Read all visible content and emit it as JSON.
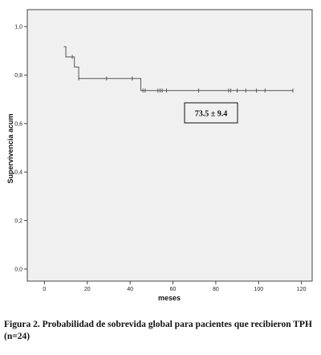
{
  "chart_data": {
    "type": "line",
    "subtype": "kaplan-meier survival curve",
    "xlabel": "meses",
    "ylabel": "Supervivencia acum",
    "xlim": [
      -8,
      125
    ],
    "ylim": [
      -0.05,
      1.07
    ],
    "x_ticks": [
      0,
      20,
      40,
      60,
      80,
      100,
      120
    ],
    "y_ticks": [
      0.0,
      0.2,
      0.4,
      0.6,
      0.8,
      1.0
    ],
    "y_tick_labels": [
      "0,0",
      "0,2",
      "0,4",
      "0,6",
      "0,8",
      "1,0"
    ],
    "grid": false,
    "series": [
      {
        "step_points": [
          {
            "x": 9,
            "y": 0.917
          },
          {
            "x": 10,
            "y": 0.875
          },
          {
            "x": 14,
            "y": 0.833
          },
          {
            "x": 16,
            "y": 0.786
          },
          {
            "x": 45,
            "y": 0.736
          },
          {
            "x": 116,
            "y": 0.736
          }
        ],
        "censored": [
          {
            "x": 13,
            "y": 0.875
          },
          {
            "x": 16,
            "y": 0.786
          },
          {
            "x": 29,
            "y": 0.786
          },
          {
            "x": 41,
            "y": 0.786
          },
          {
            "x": 46,
            "y": 0.736
          },
          {
            "x": 47,
            "y": 0.736
          },
          {
            "x": 53,
            "y": 0.736
          },
          {
            "x": 54,
            "y": 0.736
          },
          {
            "x": 55,
            "y": 0.736
          },
          {
            "x": 57,
            "y": 0.736
          },
          {
            "x": 72,
            "y": 0.736
          },
          {
            "x": 86,
            "y": 0.736
          },
          {
            "x": 87,
            "y": 0.736
          },
          {
            "x": 90,
            "y": 0.736
          },
          {
            "x": 94,
            "y": 0.736
          },
          {
            "x": 99,
            "y": 0.736
          },
          {
            "x": 103,
            "y": 0.736
          },
          {
            "x": 116,
            "y": 0.736
          }
        ]
      }
    ],
    "annotation": "73.5 ± 9.4",
    "colors": {
      "background": "#f0f0f0",
      "line": "#555555",
      "border": "#444444"
    }
  },
  "caption": "Figura 2. Probabilidad de sobrevida global para pacientes que recibieron TPH (n=24)"
}
